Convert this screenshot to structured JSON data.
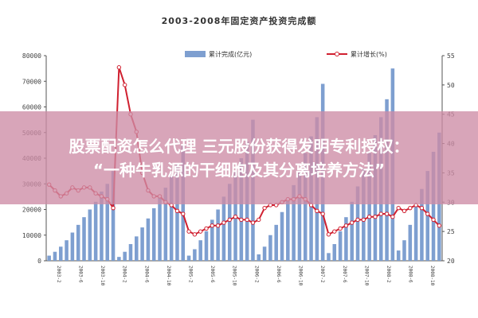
{
  "chart_data": {
    "type": "bar",
    "title": "2003-2008年固定资产投资完成额",
    "legend": {
      "position": "top",
      "bar_label": "累计完成(亿元)",
      "line_label": "累计增长(%)"
    },
    "y_left": {
      "ylim": [
        0,
        80000
      ],
      "ticks": [
        "0",
        "10000",
        "20000",
        "30000",
        "40000",
        "50000",
        "60000",
        "70000",
        "80000"
      ]
    },
    "y_right": {
      "ylim": [
        20,
        55
      ],
      "ticks": [
        "20",
        "25",
        "30",
        "35",
        "40",
        "45",
        "50",
        "55"
      ]
    },
    "x_labels": [
      "2003-2",
      "2003-6",
      "2003-10",
      "2004-2",
      "2004-6",
      "2004-10",
      "2005-2",
      "2005-6",
      "2005-10",
      "2006-2",
      "2006-6",
      "2006-10",
      "2007-2",
      "2007-6",
      "2007-10",
      "2008-2",
      "2008-6",
      "2008-10"
    ],
    "series": [
      {
        "name": "累计完成(亿元)",
        "kind": "bar",
        "color": "#7e9fd0",
        "values": [
          2000,
          3500,
          5500,
          8000,
          11000,
          14000,
          17000,
          20000,
          23000,
          27000,
          30000,
          35000,
          1500,
          3500,
          6500,
          9500,
          13000,
          16500,
          20500,
          24500,
          28500,
          33000,
          38000,
          45000,
          2000,
          4500,
          8000,
          11500,
          16000,
          20000,
          25000,
          30000,
          35000,
          40000,
          46500,
          55000,
          2500,
          5500,
          10000,
          14000,
          19000,
          24000,
          29500,
          35000,
          42000,
          48500,
          56000,
          69000,
          3000,
          6500,
          11500,
          17000,
          23000,
          29000,
          36000,
          42000,
          49000,
          56000,
          63000,
          75000,
          4000,
          8000,
          14000,
          21000,
          28000,
          35000,
          42500,
          50000
        ]
      },
      {
        "name": "累计增长(%)",
        "kind": "line",
        "color": "#d02030",
        "values": [
          33,
          32,
          31,
          31.5,
          32.5,
          32,
          32.5,
          32.5,
          31.5,
          31,
          30.5,
          29,
          53,
          50,
          45,
          42,
          35,
          32,
          31,
          31,
          30,
          29.5,
          28.5,
          28,
          25,
          24.5,
          25,
          25.5,
          26,
          26,
          26.5,
          27,
          27.5,
          27,
          27,
          26.5,
          27,
          29,
          29.5,
          29.5,
          30,
          30.5,
          30.5,
          31,
          30.5,
          29.5,
          28.5,
          28,
          24.5,
          25,
          25.5,
          26,
          26.5,
          27,
          27,
          27.5,
          27.5,
          28,
          28,
          27.5,
          29,
          28.5,
          29,
          29.5,
          29,
          28,
          27,
          26
        ]
      }
    ]
  },
  "banner": {
    "line1": "股票配资怎么代理 三元股份获得发明专利授权：",
    "line2": "“一种牛乳源的干细胞及其分离培养方法”"
  },
  "colors": {
    "banner_bg": "#cd8ca5",
    "bar": "#7e9fd0",
    "line": "#d02030"
  }
}
